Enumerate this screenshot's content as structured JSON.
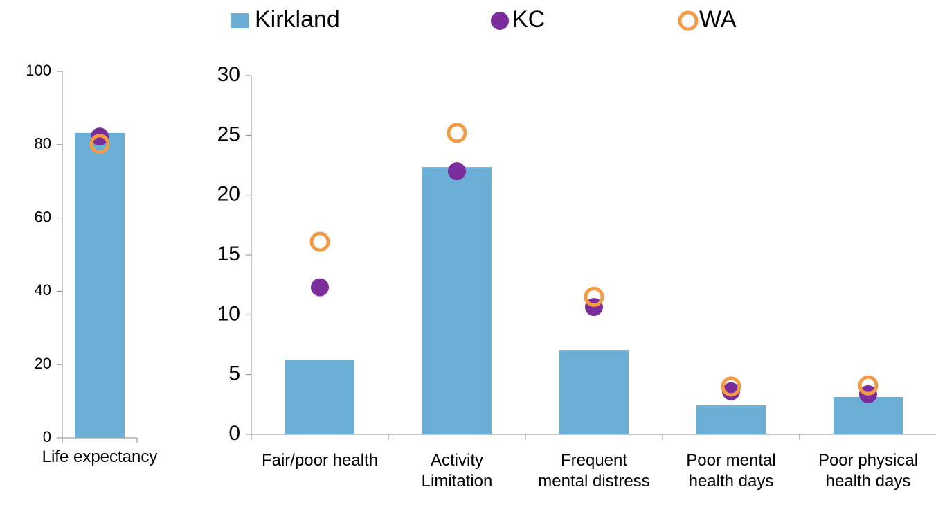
{
  "chart_data": [
    {
      "type": "bar",
      "categories": [
        "Life expectancy"
      ],
      "series": [
        {
          "name": "Kirkland",
          "color": "#6baed6",
          "marker": "bar",
          "values": [
            83.2
          ]
        },
        {
          "name": "KC",
          "color": "#7b2d9b",
          "marker": "dot",
          "values": [
            82.2
          ]
        },
        {
          "name": "WA",
          "color": "#f39a45",
          "marker": "ring",
          "values": [
            80.2
          ]
        }
      ],
      "ylim": [
        0,
        100
      ],
      "yticks": [
        0,
        20,
        40,
        60,
        80,
        100
      ]
    },
    {
      "type": "bar",
      "categories": [
        "Fair/poor health",
        "Activity Limitation",
        "Frequent mental distress",
        "Poor mental health days",
        "Poor physical health days"
      ],
      "series": [
        {
          "color": "#6baed6",
          "marker": "bar",
          "values": [
            6.25,
            22.35,
            7.06,
            2.43,
            3.13
          ]
        },
        {
          "color": "#7b2d9b",
          "marker": "dot",
          "values": [
            12.3,
            22.0,
            10.65,
            3.6,
            3.36
          ]
        },
        {
          "color": "#f39a45",
          "marker": "ring",
          "values": [
            16.1,
            25.2,
            11.5,
            4.0,
            4.1
          ]
        }
      ],
      "ylim": [
        0,
        30
      ],
      "yticks": [
        0,
        5,
        10,
        15,
        20,
        25,
        30
      ]
    }
  ]
}
